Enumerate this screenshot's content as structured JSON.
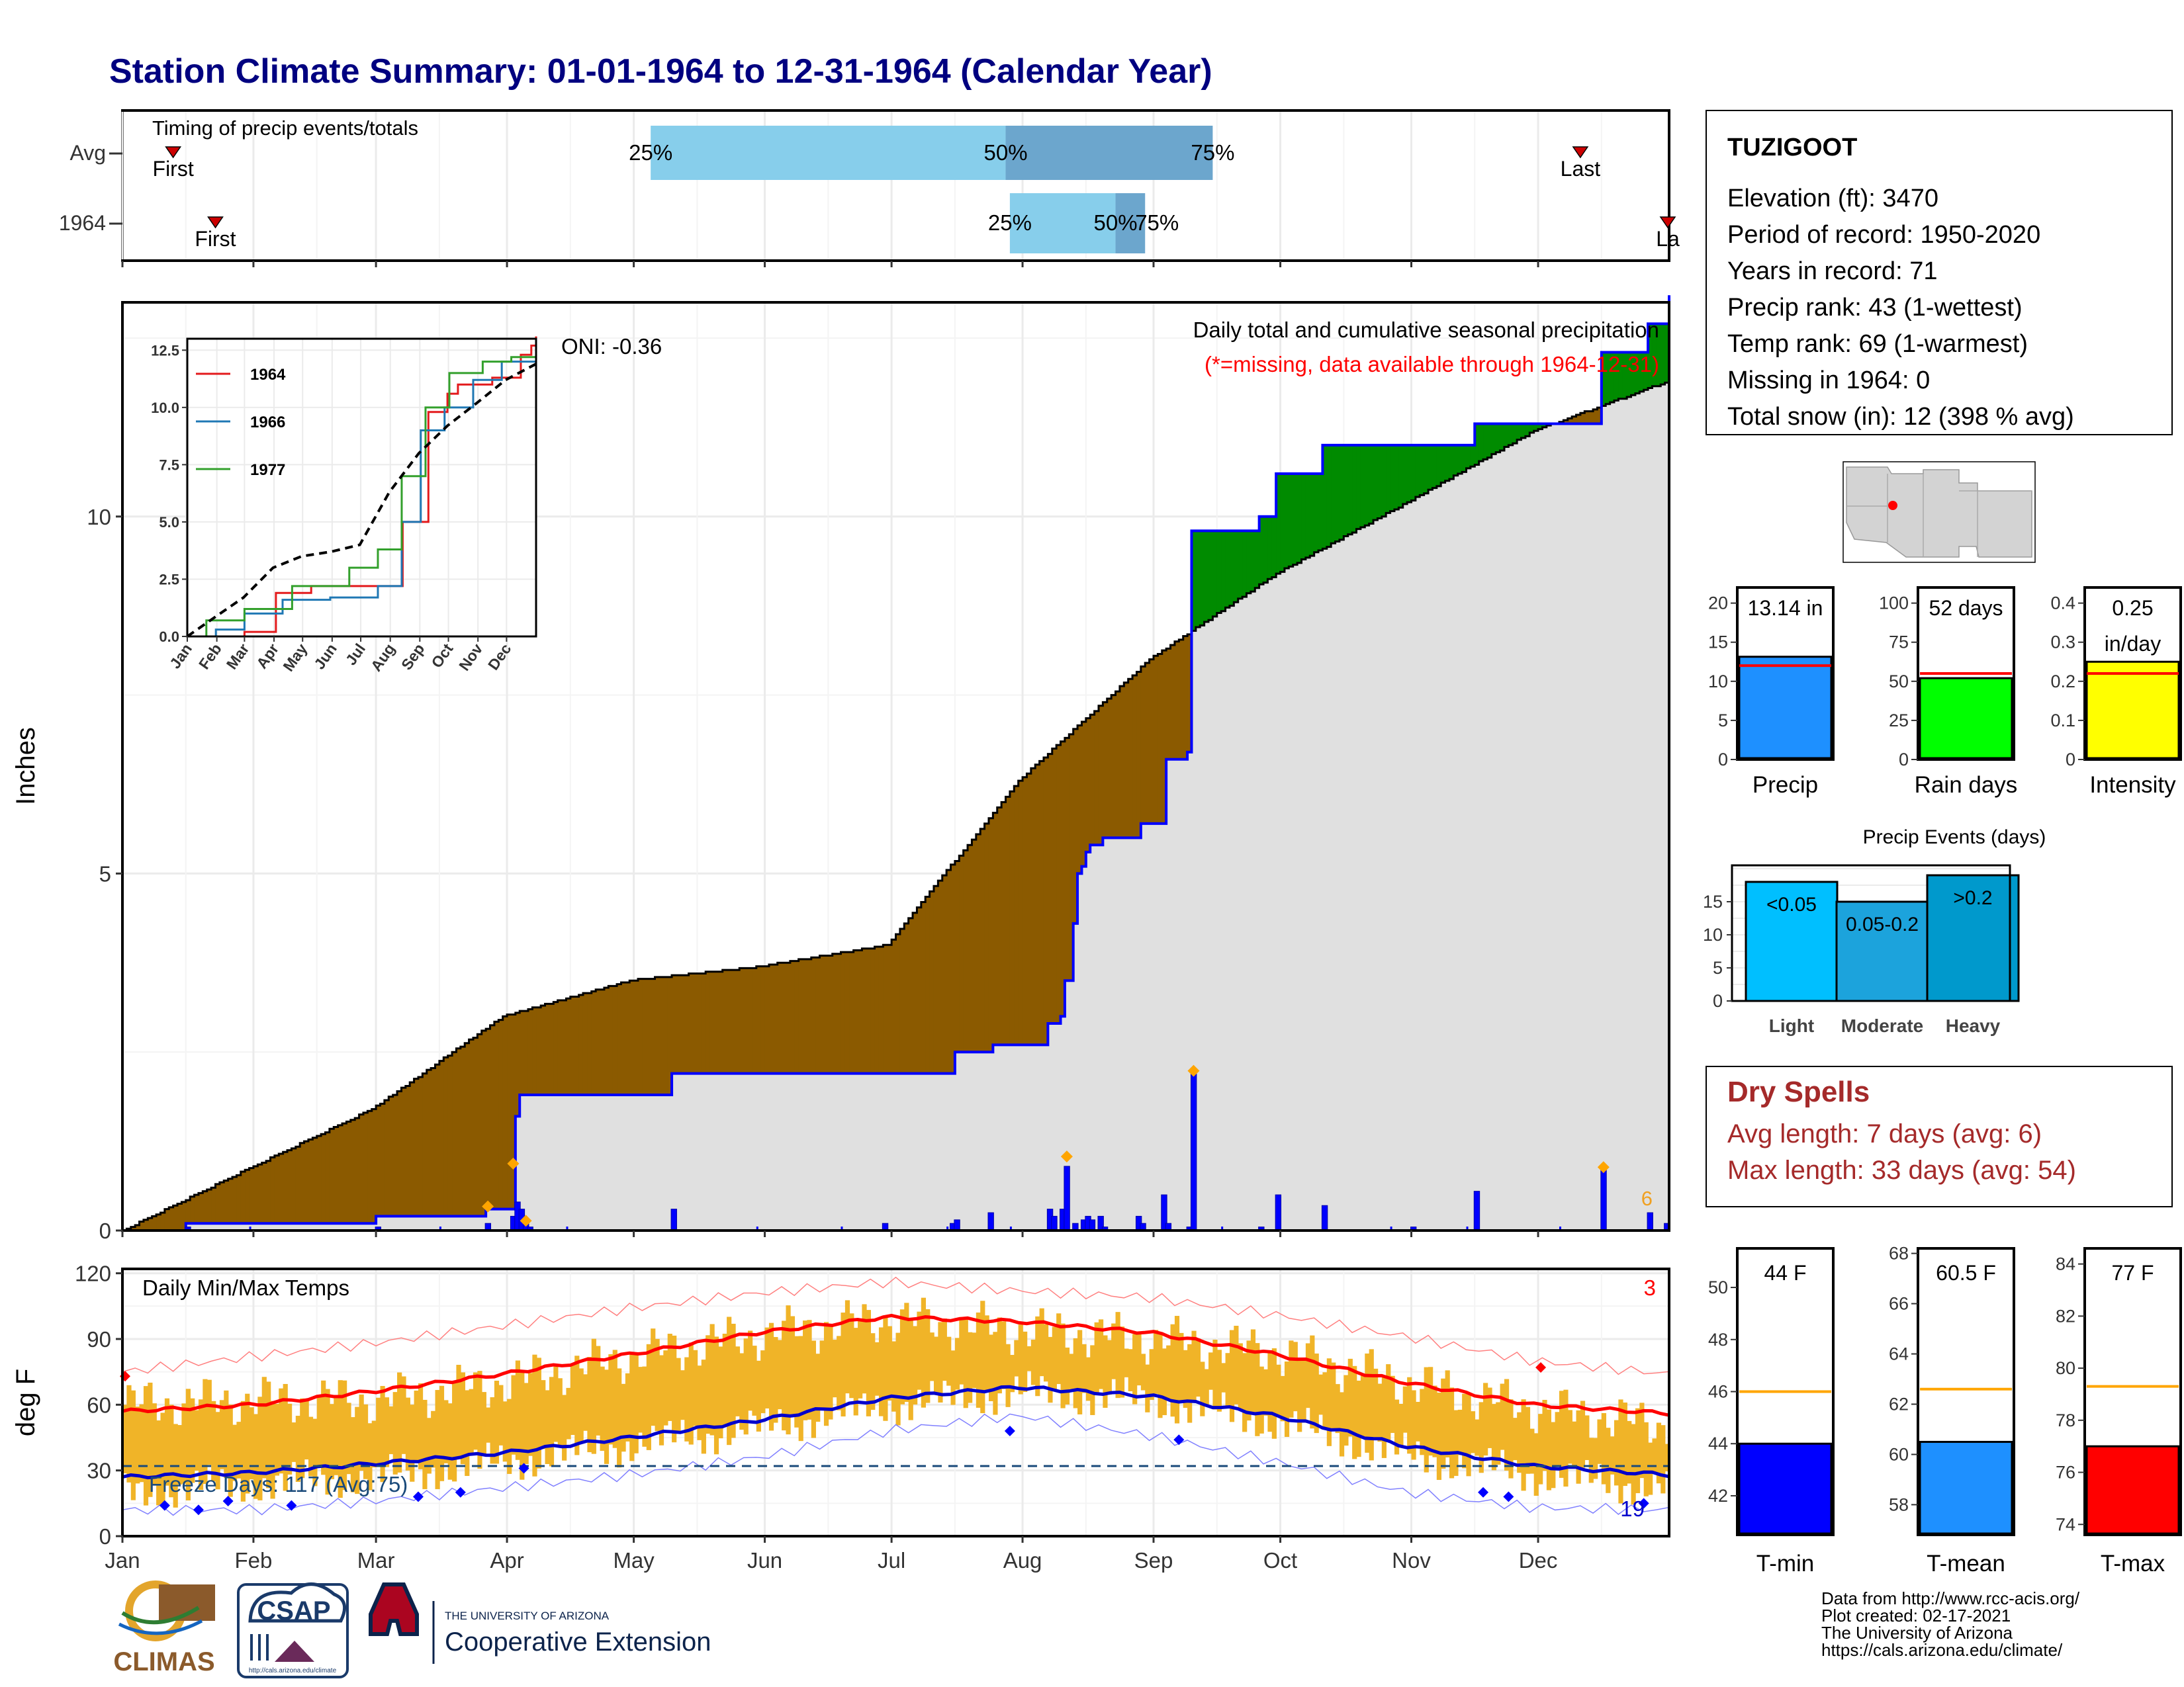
{
  "title": "Station Climate Summary: 01-01-1964 to 12-31-1964 (Calendar Year)",
  "months": [
    "Jan",
    "Feb",
    "Mar",
    "Apr",
    "May",
    "Jun",
    "Jul",
    "Aug",
    "Sep",
    "Oct",
    "Nov",
    "Dec"
  ],
  "station": {
    "name": "TUZIGOOT",
    "lines": [
      "Elevation (ft): 3470",
      "Period of record: 1950-2020",
      "Years in record: 71",
      "Precip rank: 43 (1-wettest)",
      "Temp rank: 69 (1-warmest)",
      "Missing in 1964: 0",
      "Total snow (in): 12 (398 % avg)"
    ]
  },
  "colors": {
    "title": "#000080",
    "deficit": "#8B5A00",
    "surplus": "#008B00",
    "normal_fill": "#E0E0E0",
    "cum_line": "#0000FF",
    "daily_bar": "#0000FF",
    "temp_bar": "#F0B428",
    "tmax_avg": "#FF0000",
    "tmin_avg": "#0000CC",
    "dry_spell": "#A52A2A",
    "missing_note": "#FF0000",
    "freeze": "#1A4A7A"
  },
  "chart_data": [
    {
      "id": "timing",
      "type": "bar",
      "title": "Timing of precip events/totals",
      "rows": [
        {
          "label": "Avg",
          "first_day": 12,
          "last_day": 345,
          "p25_day": 125,
          "p50_day": 209,
          "p75_day": 258,
          "first_label": "First",
          "last_label": "Last",
          "p25_label": "25%",
          "p50_label": "50%",
          "p75_label": "75%"
        },
        {
          "label": "1964",
          "first_day": 22,
          "last_day": 366,
          "p25_day": 210,
          "p50_day": 235,
          "p75_day": 242,
          "first_label": "First",
          "last_label": "La",
          "p25_label": "25%",
          "p50_label": "50%",
          "p75_label": "75%"
        }
      ]
    },
    {
      "id": "precip",
      "type": "area",
      "title": "Daily total and cumulative seasonal precipitation",
      "subtitle": "(*=missing, data available through 1964-12-31)",
      "ylabel": "Inches",
      "ylim": [
        0,
        13.0
      ],
      "yticks": [
        0,
        5,
        10
      ],
      "oni_label": "ONI: -0.36",
      "snow_days_label": "6",
      "normal_cumulative": [
        [
          0,
          0.0
        ],
        [
          31,
          0.9
        ],
        [
          59,
          1.7
        ],
        [
          90,
          3.0
        ],
        [
          120,
          3.5
        ],
        [
          151,
          3.7
        ],
        [
          181,
          4.0
        ],
        [
          212,
          6.3
        ],
        [
          243,
          8.0
        ],
        [
          273,
          9.2
        ],
        [
          304,
          10.2
        ],
        [
          334,
          11.2
        ],
        [
          366,
          11.9
        ]
      ],
      "observed_cumulative": [
        [
          0,
          0.0
        ],
        [
          14,
          0.0
        ],
        [
          15,
          0.1
        ],
        [
          59,
          0.1
        ],
        [
          60,
          0.2
        ],
        [
          85,
          0.2
        ],
        [
          86,
          0.3
        ],
        [
          92,
          0.3
        ],
        [
          93,
          1.6
        ],
        [
          94,
          1.9
        ],
        [
          129,
          1.9
        ],
        [
          130,
          2.2
        ],
        [
          196,
          2.2
        ],
        [
          197,
          2.5
        ],
        [
          205,
          2.5
        ],
        [
          206,
          2.6
        ],
        [
          218,
          2.6
        ],
        [
          219,
          2.9
        ],
        [
          222,
          3.0
        ],
        [
          223,
          3.5
        ],
        [
          225,
          4.3
        ],
        [
          226,
          5.0
        ],
        [
          227,
          5.1
        ],
        [
          228,
          5.3
        ],
        [
          229,
          5.4
        ],
        [
          231,
          5.4
        ],
        [
          232,
          5.5
        ],
        [
          240,
          5.5
        ],
        [
          241,
          5.7
        ],
        [
          246,
          5.7
        ],
        [
          247,
          6.6
        ],
        [
          252,
          6.7
        ],
        [
          253,
          9.8
        ],
        [
          268,
          9.8
        ],
        [
          269,
          10.0
        ],
        [
          272,
          10.0
        ],
        [
          273,
          10.6
        ],
        [
          283,
          10.6
        ],
        [
          284,
          11.0
        ],
        [
          305,
          11.0
        ],
        [
          306,
          11.0
        ],
        [
          319,
          11.0
        ],
        [
          320,
          11.3
        ],
        [
          349,
          11.3
        ],
        [
          350,
          12.3
        ],
        [
          360,
          12.3
        ],
        [
          361,
          12.7
        ],
        [
          365,
          12.7
        ],
        [
          366,
          13.1
        ]
      ],
      "daily_bars": [
        [
          15,
          0.05
        ],
        [
          60,
          0.05
        ],
        [
          86,
          0.1
        ],
        [
          92,
          0.2
        ],
        [
          93,
          0.4
        ],
        [
          94,
          0.3
        ],
        [
          95,
          0.15
        ],
        [
          96,
          0.05
        ],
        [
          130,
          0.3
        ],
        [
          180,
          0.1
        ],
        [
          196,
          0.1
        ],
        [
          197,
          0.15
        ],
        [
          205,
          0.25
        ],
        [
          219,
          0.3
        ],
        [
          220,
          0.2
        ],
        [
          222,
          0.3
        ],
        [
          223,
          0.9
        ],
        [
          225,
          0.1
        ],
        [
          227,
          0.15
        ],
        [
          228,
          0.2
        ],
        [
          229,
          0.15
        ],
        [
          231,
          0.2
        ],
        [
          232,
          0.05
        ],
        [
          240,
          0.2
        ],
        [
          241,
          0.1
        ],
        [
          246,
          0.5
        ],
        [
          247,
          0.1
        ],
        [
          252,
          0.05
        ],
        [
          253,
          2.2
        ],
        [
          269,
          0.05
        ],
        [
          273,
          0.5
        ],
        [
          284,
          0.35
        ],
        [
          305,
          0.05
        ],
        [
          320,
          0.55
        ],
        [
          350,
          0.85
        ],
        [
          361,
          0.25
        ],
        [
          365,
          0.1
        ]
      ],
      "snow_marks": [
        [
          86,
          0.3
        ],
        [
          92,
          0.9
        ],
        [
          95,
          0.1
        ],
        [
          223,
          1.0
        ],
        [
          253,
          2.2
        ],
        [
          350,
          0.85
        ]
      ]
    },
    {
      "id": "inset",
      "type": "line",
      "xlabel": "",
      "ylabel": "",
      "ylim": [
        0,
        13.0
      ],
      "yticks": [
        0.0,
        2.5,
        5.0,
        7.5,
        10.0,
        12.5
      ],
      "series": [
        {
          "name": "1964",
          "color": "#E31A1C",
          "points": [
            [
              0,
              0
            ],
            [
              60,
              0.2
            ],
            [
              93,
              1.9
            ],
            [
              130,
              2.2
            ],
            [
              196,
              2.2
            ],
            [
              226,
              5.0
            ],
            [
              253,
              9.8
            ],
            [
              273,
              10.6
            ],
            [
              284,
              11.0
            ],
            [
              320,
              11.3
            ],
            [
              350,
              12.3
            ],
            [
              361,
              12.7
            ],
            [
              366,
              13.1
            ]
          ]
        },
        {
          "name": "1966",
          "color": "#1F78B4",
          "points": [
            [
              0,
              0
            ],
            [
              30,
              0.3
            ],
            [
              60,
              1.0
            ],
            [
              100,
              1.6
            ],
            [
              150,
              1.7
            ],
            [
              200,
              2.2
            ],
            [
              225,
              5.0
            ],
            [
              245,
              9.0
            ],
            [
              270,
              10.0
            ],
            [
              300,
              11.2
            ],
            [
              330,
              12.0
            ],
            [
              366,
              12.5
            ]
          ]
        },
        {
          "name": "1977",
          "color": "#33A02C",
          "points": [
            [
              0,
              0
            ],
            [
              20,
              0.7
            ],
            [
              60,
              1.2
            ],
            [
              110,
              2.2
            ],
            [
              170,
              3.0
            ],
            [
              200,
              3.8
            ],
            [
              225,
              7.0
            ],
            [
              250,
              10.0
            ],
            [
              275,
              11.5
            ],
            [
              310,
              12.0
            ],
            [
              340,
              12.2
            ],
            [
              366,
              12.4
            ]
          ]
        },
        {
          "name": "",
          "color": "#000000",
          "dashed": true,
          "points": [
            [
              0,
              0
            ],
            [
              31,
              0.9
            ],
            [
              59,
              1.7
            ],
            [
              90,
              3.0
            ],
            [
              120,
              3.5
            ],
            [
              151,
              3.7
            ],
            [
              181,
              4.0
            ],
            [
              212,
              6.3
            ],
            [
              243,
              8.0
            ],
            [
              273,
              9.2
            ],
            [
              304,
              10.2
            ],
            [
              334,
              11.2
            ],
            [
              366,
              11.9
            ]
          ]
        }
      ]
    },
    {
      "id": "temps",
      "type": "bar",
      "title": "Daily Min/Max Temps",
      "ylabel": "deg F",
      "ylim": [
        0,
        122
      ],
      "yticks": [
        0,
        30,
        60,
        90,
        120
      ],
      "freeze_label": "Freeze Days: 117 (Avg:75)",
      "freeze_threshold": 32,
      "record_high_count": "3",
      "record_low_count": "19",
      "avg_tmax": [
        [
          0,
          57
        ],
        [
          31,
          60
        ],
        [
          59,
          66
        ],
        [
          90,
          74
        ],
        [
          120,
          83
        ],
        [
          151,
          93
        ],
        [
          181,
          100
        ],
        [
          212,
          98
        ],
        [
          243,
          93
        ],
        [
          273,
          83
        ],
        [
          304,
          70
        ],
        [
          334,
          60
        ],
        [
          366,
          56
        ]
      ],
      "avg_tmin": [
        [
          0,
          27
        ],
        [
          31,
          29
        ],
        [
          59,
          33
        ],
        [
          90,
          38
        ],
        [
          120,
          45
        ],
        [
          151,
          53
        ],
        [
          181,
          63
        ],
        [
          212,
          68
        ],
        [
          243,
          64
        ],
        [
          273,
          55
        ],
        [
          304,
          41
        ],
        [
          334,
          32
        ],
        [
          366,
          28
        ]
      ],
      "rec_tmax": [
        [
          0,
          75
        ],
        [
          31,
          82
        ],
        [
          59,
          88
        ],
        [
          90,
          96
        ],
        [
          120,
          104
        ],
        [
          151,
          111
        ],
        [
          181,
          116
        ],
        [
          212,
          112
        ],
        [
          243,
          109
        ],
        [
          273,
          101
        ],
        [
          304,
          91
        ],
        [
          334,
          80
        ],
        [
          366,
          74
        ]
      ],
      "rec_tmin": [
        [
          0,
          12
        ],
        [
          31,
          12
        ],
        [
          59,
          16
        ],
        [
          90,
          22
        ],
        [
          120,
          28
        ],
        [
          151,
          36
        ],
        [
          181,
          48
        ],
        [
          212,
          55
        ],
        [
          243,
          46
        ],
        [
          273,
          34
        ],
        [
          304,
          20
        ],
        [
          334,
          13
        ],
        [
          366,
          12
        ]
      ],
      "obs_max": [
        [
          0,
          60
        ],
        [
          31,
          62
        ],
        [
          59,
          62
        ],
        [
          90,
          70
        ],
        [
          120,
          82
        ],
        [
          151,
          92
        ],
        [
          181,
          99
        ],
        [
          212,
          94
        ],
        [
          243,
          90
        ],
        [
          273,
          84
        ],
        [
          304,
          70
        ],
        [
          334,
          58
        ],
        [
          366,
          50
        ]
      ],
      "obs_min": [
        [
          0,
          20
        ],
        [
          31,
          24
        ],
        [
          59,
          27
        ],
        [
          90,
          34
        ],
        [
          120,
          42
        ],
        [
          151,
          50
        ],
        [
          181,
          60
        ],
        [
          212,
          66
        ],
        [
          243,
          62
        ],
        [
          273,
          52
        ],
        [
          304,
          37
        ],
        [
          334,
          28
        ],
        [
          366,
          22
        ]
      ],
      "record_low_marks": [
        [
          10,
          14
        ],
        [
          18,
          12
        ],
        [
          25,
          16
        ],
        [
          40,
          14
        ],
        [
          70,
          18
        ],
        [
          80,
          20
        ],
        [
          95,
          31
        ],
        [
          210,
          48
        ],
        [
          250,
          44
        ],
        [
          322,
          20
        ],
        [
          328,
          18
        ],
        [
          360,
          15
        ]
      ],
      "record_high_marks": [
        [
          0,
          73
        ],
        [
          335,
          77
        ]
      ]
    },
    {
      "id": "precip_bars",
      "type": "bar",
      "series": [
        {
          "name": "Precip",
          "value": 13.14,
          "avg": 12.0,
          "ylim": [
            0,
            22
          ],
          "yticks": [
            0,
            5,
            10,
            15,
            20
          ],
          "label_top": "13.14 in",
          "color": "#1E90FF"
        },
        {
          "name": "Rain days",
          "value": 52,
          "avg": 55,
          "ylim": [
            0,
            110
          ],
          "yticks": [
            0,
            25,
            50,
            75,
            100
          ],
          "label_top": "52 days",
          "color": "#00FF00"
        },
        {
          "name": "Intensity",
          "value": 0.25,
          "avg": 0.22,
          "ylim": [
            0,
            0.44
          ],
          "yticks": [
            0.0,
            0.1,
            0.2,
            0.3,
            0.4
          ],
          "label_top": "0.25",
          "label_top2": "in/day",
          "color": "#FFFF00"
        }
      ]
    },
    {
      "id": "events",
      "type": "bar",
      "title": "Precip Events (days)",
      "categories": [
        "Light",
        "Moderate",
        "Heavy"
      ],
      "labels": [
        "<0.05",
        "0.05-0.2",
        ">0.2"
      ],
      "values": [
        18,
        15,
        19
      ],
      "colors": [
        "#00BFFF",
        "#1CA3DC",
        "#0099CC"
      ],
      "ylim": [
        0,
        20.5
      ],
      "yticks": [
        0,
        5,
        10,
        15
      ]
    },
    {
      "id": "temp_bars",
      "type": "bar",
      "series": [
        {
          "name": "T-min",
          "value": 44,
          "avg": 46,
          "ylim": [
            40.5,
            51.5
          ],
          "yticks": [
            42,
            44,
            46,
            48,
            50
          ],
          "label_top": "44 F",
          "color": "#0000FF"
        },
        {
          "name": "T-mean",
          "value": 60.5,
          "avg": 62.6,
          "ylim": [
            56.8,
            68.2
          ],
          "yticks": [
            58,
            60,
            62,
            64,
            66,
            68
          ],
          "label_top": "60.5 F",
          "color": "#1E90FF"
        },
        {
          "name": "T-max",
          "value": 77,
          "avg": 79.3,
          "ylim": [
            73.6,
            84.6
          ],
          "yticks": [
            74,
            76,
            78,
            80,
            82,
            84
          ],
          "label_top": "77 F",
          "color": "#FF0000"
        }
      ]
    }
  ],
  "dry_spells": {
    "title": "Dry Spells",
    "avg_line": "Avg length: 7 days (avg: 6)",
    "max_line": "Max length: 33 days (avg: 54)"
  },
  "logos": {
    "climas": "CLIMAS",
    "csap": "CSAP",
    "csap_url": "http://cals.arizona.edu/climate",
    "ua_top": "THE UNIVERSITY OF ARIZONA",
    "ua_bottom": "Cooperative Extension"
  },
  "footer": [
    "Data from http://www.rcc-acis.org/",
    "Plot created: 02-17-2021",
    "The University of Arizona",
    "https://cals.arizona.edu/climate/"
  ]
}
